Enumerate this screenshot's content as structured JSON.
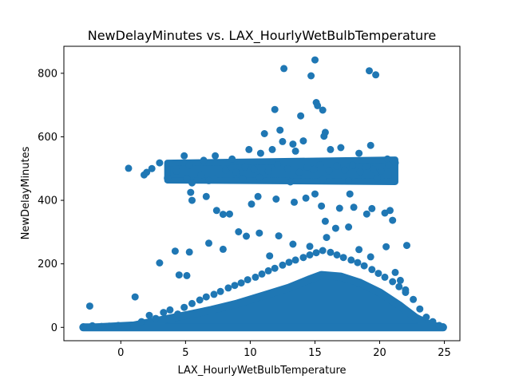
{
  "chart_data": {
    "type": "scatter",
    "title": "NewDelayMinutes vs. LAX_HourlyWetBulbTemperature",
    "xlabel": "LAX_HourlyWetBulbTemperature",
    "ylabel": "NewDelayMinutes",
    "xlim": [
      -4.4,
      26.2
    ],
    "ylim": [
      -42,
      885
    ],
    "xticks": [
      0,
      5,
      10,
      15,
      20,
      25
    ],
    "yticks": [
      0,
      200,
      400,
      600,
      800
    ],
    "grid": false,
    "legend": "none",
    "marker_color": "#1f77b4",
    "series": [
      {
        "points": [
          [
            15.0,
            842
          ],
          [
            12.6,
            815
          ],
          [
            19.2,
            808
          ],
          [
            19.7,
            795
          ],
          [
            14.7,
            792
          ],
          [
            15.1,
            708
          ],
          [
            15.2,
            698
          ],
          [
            15.6,
            684
          ],
          [
            11.9,
            686
          ],
          [
            13.9,
            666
          ],
          [
            15.8,
            614
          ],
          [
            11.1,
            610
          ],
          [
            12.3,
            621
          ],
          [
            15.7,
            602
          ],
          [
            19.3,
            573
          ],
          [
            12.5,
            585
          ],
          [
            13.3,
            577
          ],
          [
            14.1,
            587
          ],
          [
            17.0,
            566
          ],
          [
            0.6,
            501
          ],
          [
            1.8,
            480
          ],
          [
            2.0,
            488
          ],
          [
            2.4,
            500
          ],
          [
            3.0,
            518
          ],
          [
            3.6,
            470
          ],
          [
            4.3,
            492
          ],
          [
            4.9,
            540
          ],
          [
            5.3,
            510
          ],
          [
            6.4,
            526
          ],
          [
            7.3,
            540
          ],
          [
            8.6,
            530
          ],
          [
            9.9,
            560
          ],
          [
            10.8,
            548
          ],
          [
            11.7,
            560
          ],
          [
            13.5,
            555
          ],
          [
            16.2,
            560
          ],
          [
            18.4,
            548
          ],
          [
            20.6,
            530
          ],
          [
            21.2,
            518
          ],
          [
            5.1,
            468
          ],
          [
            6.2,
            480
          ],
          [
            7.1,
            470
          ],
          [
            8.1,
            495
          ],
          [
            8.9,
            488
          ],
          [
            9.6,
            505
          ],
          [
            10.3,
            498
          ],
          [
            11.4,
            492
          ],
          [
            12.1,
            512
          ],
          [
            12.9,
            500
          ],
          [
            13.8,
            488
          ],
          [
            14.4,
            505
          ],
          [
            14.9,
            497
          ],
          [
            15.4,
            512
          ],
          [
            16.1,
            493
          ],
          [
            16.7,
            508
          ],
          [
            17.3,
            495
          ],
          [
            17.9,
            510
          ],
          [
            18.5,
            490
          ],
          [
            19.0,
            507
          ],
          [
            19.5,
            498
          ],
          [
            20.1,
            492
          ],
          [
            20.7,
            510
          ],
          [
            21.1,
            500
          ],
          [
            5.5,
            455
          ],
          [
            6.8,
            462
          ],
          [
            9.4,
            468
          ],
          [
            10.7,
            472
          ],
          [
            13.1,
            458
          ],
          [
            15.6,
            466
          ],
          [
            17.6,
            462
          ],
          [
            19.8,
            470
          ],
          [
            5.4,
            425
          ],
          [
            5.5,
            400
          ],
          [
            6.6,
            412
          ],
          [
            7.4,
            368
          ],
          [
            7.9,
            356
          ],
          [
            8.4,
            357
          ],
          [
            10.1,
            388
          ],
          [
            10.6,
            412
          ],
          [
            12.0,
            404
          ],
          [
            13.4,
            394
          ],
          [
            14.3,
            407
          ],
          [
            15.0,
            420
          ],
          [
            15.5,
            382
          ],
          [
            15.8,
            334
          ],
          [
            16.9,
            375
          ],
          [
            17.7,
            420
          ],
          [
            18.0,
            378
          ],
          [
            19.0,
            357
          ],
          [
            19.4,
            374
          ],
          [
            20.4,
            360
          ],
          [
            20.8,
            368
          ],
          [
            21.0,
            337
          ],
          [
            22.1,
            258
          ],
          [
            3.0,
            203
          ],
          [
            4.2,
            240
          ],
          [
            4.5,
            165
          ],
          [
            5.1,
            163
          ],
          [
            5.3,
            237
          ],
          [
            6.8,
            265
          ],
          [
            7.9,
            246
          ],
          [
            9.1,
            301
          ],
          [
            9.7,
            287
          ],
          [
            10.7,
            297
          ],
          [
            11.5,
            225
          ],
          [
            12.2,
            288
          ],
          [
            13.3,
            262
          ],
          [
            14.6,
            255
          ],
          [
            15.9,
            283
          ],
          [
            16.6,
            312
          ],
          [
            17.6,
            316
          ],
          [
            18.4,
            245
          ],
          [
            19.3,
            222
          ],
          [
            20.5,
            254
          ],
          [
            21.2,
            173
          ],
          [
            21.6,
            148
          ],
          [
            22.0,
            118
          ],
          [
            -2.9,
            2
          ],
          [
            -2.4,
            67
          ],
          [
            -2.2,
            5
          ],
          [
            -1.5,
            3
          ],
          [
            -0.9,
            4
          ],
          [
            -0.2,
            6
          ],
          [
            0.5,
            2
          ],
          [
            1.1,
            96
          ],
          [
            1.6,
            18
          ],
          [
            2.2,
            38
          ],
          [
            2.7,
            28
          ],
          [
            3.3,
            47
          ],
          [
            3.8,
            55
          ],
          [
            4.4,
            42
          ],
          [
            4.9,
            63
          ],
          [
            5.5,
            75
          ],
          [
            6.1,
            86
          ],
          [
            6.6,
            96
          ],
          [
            7.2,
            104
          ],
          [
            7.7,
            113
          ],
          [
            8.3,
            124
          ],
          [
            8.8,
            132
          ],
          [
            9.3,
            140
          ],
          [
            9.8,
            150
          ],
          [
            10.4,
            158
          ],
          [
            10.9,
            168
          ],
          [
            11.4,
            178
          ],
          [
            11.9,
            186
          ],
          [
            12.5,
            196
          ],
          [
            13.0,
            205
          ],
          [
            13.5,
            212
          ],
          [
            14.1,
            220
          ],
          [
            14.6,
            228
          ],
          [
            15.1,
            235
          ],
          [
            15.6,
            242
          ],
          [
            16.2,
            236
          ],
          [
            16.7,
            228
          ],
          [
            17.2,
            220
          ],
          [
            17.8,
            212
          ],
          [
            18.3,
            204
          ],
          [
            18.8,
            194
          ],
          [
            19.4,
            182
          ],
          [
            19.9,
            170
          ],
          [
            20.4,
            158
          ],
          [
            21.0,
            144
          ],
          [
            21.5,
            128
          ],
          [
            22.0,
            110
          ],
          [
            22.6,
            88
          ],
          [
            23.1,
            58
          ],
          [
            23.6,
            32
          ],
          [
            24.1,
            18
          ],
          [
            24.6,
            6
          ],
          [
            24.9,
            2
          ]
        ]
      }
    ]
  }
}
